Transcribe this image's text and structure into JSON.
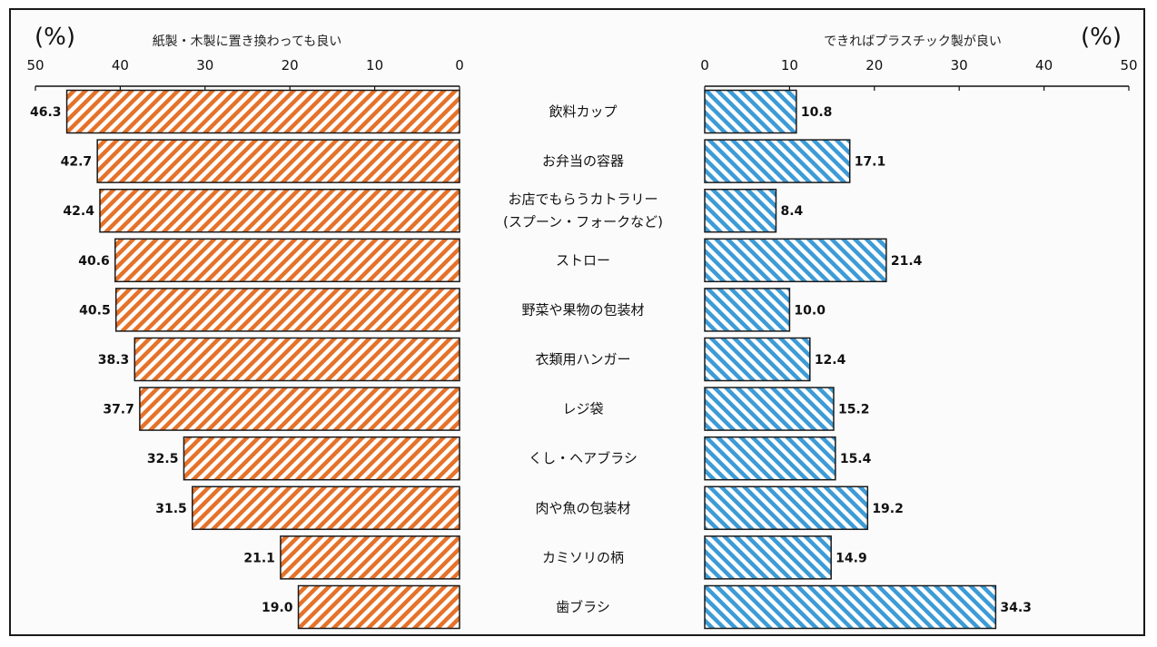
{
  "chart_data": {
    "type": "bar",
    "unit_label_left": "(%)",
    "unit_label_right": "(%)",
    "left_panel": {
      "header": "紙製・木製に置き換わっても良い",
      "xlim": [
        0,
        50
      ],
      "ticks": [
        "50",
        "40",
        "30",
        "20",
        "10",
        "0"
      ],
      "color": "#e5722a"
    },
    "right_panel": {
      "header": "できればプラスチック製が良い",
      "xlim": [
        0,
        50
      ],
      "ticks": [
        "0",
        "10",
        "20",
        "30",
        "40",
        "50"
      ],
      "color": "#3d9bd6"
    },
    "categories": [
      [
        "飲料カップ"
      ],
      [
        "お弁当の容器"
      ],
      [
        "お店でもらうカトラリー",
        "(スプーン・フォークなど)"
      ],
      [
        "ストロー"
      ],
      [
        "野菜や果物の包装材"
      ],
      [
        "衣類用ハンガー"
      ],
      [
        "レジ袋"
      ],
      [
        "くし・ヘアブラシ"
      ],
      [
        "肉や魚の包装材"
      ],
      [
        "カミソリの柄"
      ],
      [
        "歯ブラシ"
      ]
    ],
    "series": [
      {
        "values": [
          46.3,
          42.7,
          42.4,
          40.6,
          40.5,
          38.3,
          37.7,
          32.5,
          31.5,
          21.1,
          19.0
        ],
        "labels": [
          "46.3",
          "42.7",
          "42.4",
          "40.6",
          "40.5",
          "38.3",
          "37.7",
          "32.5",
          "31.5",
          "21.1",
          "19.0"
        ]
      },
      {
        "values": [
          10.8,
          17.1,
          8.4,
          21.4,
          10.0,
          12.4,
          15.2,
          15.4,
          19.2,
          14.9,
          34.3
        ],
        "labels": [
          "10.8",
          "17.1",
          "8.4",
          "21.4",
          "10.0",
          "12.4",
          "15.2",
          "15.4",
          "19.2",
          "14.9",
          "34.3"
        ]
      }
    ]
  }
}
